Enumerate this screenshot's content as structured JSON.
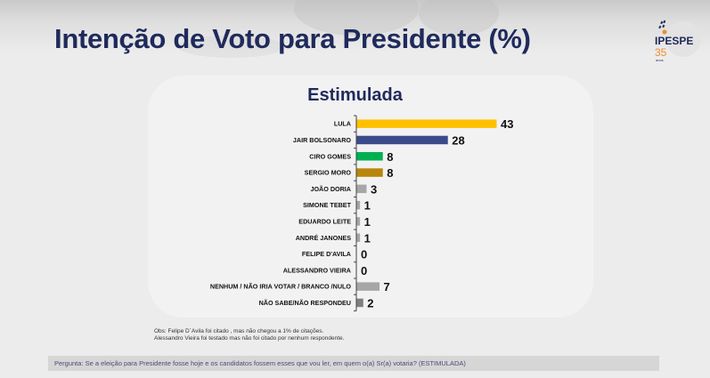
{
  "header": {
    "title": "Intenção de Voto para Presidente (%)",
    "logo": {
      "name": "IPESPE",
      "years": "35",
      "years_label": "anos"
    }
  },
  "chart_data": {
    "type": "bar",
    "orientation": "horizontal",
    "title": "Estimulada",
    "xlabel": "",
    "ylabel": "",
    "xlim": [
      0,
      43
    ],
    "grid": false,
    "legend": "none",
    "categories": [
      "LULA",
      "JAIR BOLSONARO",
      "CIRO GOMES",
      "SERGIO MORO",
      "JOÃO DORIA",
      "SIMONE TEBET",
      "EDUARDO LEITE",
      "ANDRÉ JANONES",
      "FELIPE D'AVILA",
      "ALESSANDRO VIEIRA",
      "NENHUM / NÃO IRIA VOTAR / BRANCO /NULO",
      "NÃO SABE/NÃO RESPONDEU"
    ],
    "values": [
      43,
      28,
      8,
      8,
      3,
      1,
      1,
      1,
      0,
      0,
      7,
      2
    ],
    "colors": [
      "#ffc000",
      "#3b4a8a",
      "#00b050",
      "#b8860b",
      "#a6a6a6",
      "#a6a6a6",
      "#a6a6a6",
      "#a6a6a6",
      "#a6a6a6",
      "#a6a6a6",
      "#a6a6a6",
      "#7f7f7f"
    ]
  },
  "notes": [
    "Obs: Felipe D´Avila foi citado , mas não chegou a 1% de citações.",
    "Alessandro Vieira foi testado mas não foi citado por nenhum respondente."
  ],
  "question": "Pergunta:  Se a eleição para Presidente fosse hoje e os candidatos fossem esses que vou ler, em quem o(a) Sr(a) votaria? (ESTIMULADA)"
}
